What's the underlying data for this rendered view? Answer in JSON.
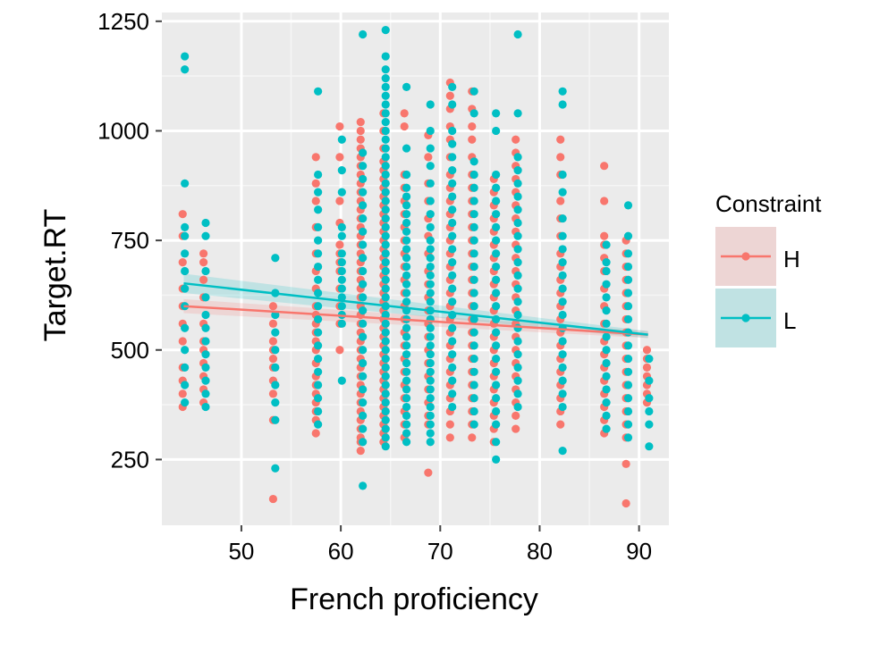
{
  "chart_data": {
    "type": "scatter",
    "title": "",
    "xlabel": "French proficiency",
    "ylabel": "Target.RT",
    "xlim": [
      42,
      93
    ],
    "ylim": [
      100,
      1270
    ],
    "x_ticks": [
      50,
      60,
      70,
      80,
      90
    ],
    "y_ticks": [
      250,
      500,
      750,
      1000,
      1250
    ],
    "grid": true,
    "legend": {
      "title": "Constraint",
      "position": "right",
      "entries": [
        {
          "label": "H",
          "color": "#f8766d"
        },
        {
          "label": "L",
          "color": "#00bfc4"
        }
      ]
    },
    "series": [
      {
        "name": "H",
        "color": "#f8766d",
        "groups": [
          {
            "x": 44.2,
            "y": [
              370,
              400,
              430,
              460,
              520,
              560,
              600,
              640,
              700,
              760,
              810
            ]
          },
          {
            "x": 46.3,
            "y": [
              380,
              410,
              440,
              470,
              500,
              520,
              560,
              620,
              660,
              700,
              720
            ]
          },
          {
            "x": 53.3,
            "y": [
              160,
              340,
              400,
              430,
              460,
              480,
              500,
              520,
              560,
              600
            ]
          },
          {
            "x": 57.6,
            "y": [
              310,
              340,
              360,
              380,
              400,
              420,
              440,
              470,
              500,
              520,
              540,
              560,
              580,
              600,
              640,
              680,
              720,
              780,
              840,
              880,
              940
            ]
          },
          {
            "x": 60.0,
            "y": [
              500,
              560,
              600,
              640,
              680,
              700,
              720,
              740,
              790,
              840,
              940,
              1010
            ]
          },
          {
            "x": 62.1,
            "y": [
              270,
              290,
              300,
              320,
              340,
              360,
              380,
              400,
              420,
              440,
              460,
              480,
              500,
              520,
              540,
              560,
              580,
              600,
              620,
              640,
              660,
              680,
              700,
              720,
              740,
              760,
              780,
              800,
              820,
              840,
              860,
              880,
              900,
              920,
              940,
              960,
              980,
              1000,
              1020
            ]
          },
          {
            "x": 64.4,
            "y": [
              290,
              310,
              330,
              350,
              370,
              390,
              410,
              430,
              450,
              470,
              490,
              510,
              530,
              550,
              570,
              590,
              610,
              630,
              650,
              670,
              690,
              710,
              730,
              750,
              770,
              790,
              810,
              830,
              850,
              870,
              890,
              910,
              930,
              960,
              1000,
              1040
            ]
          },
          {
            "x": 66.5,
            "y": [
              300,
              330,
              360,
              390,
              420,
              450,
              480,
              510,
              540,
              570,
              600,
              630,
              660,
              690,
              720,
              750,
              780,
              810,
              840,
              870,
              900,
              1010,
              1040
            ]
          },
          {
            "x": 68.9,
            "y": [
              220,
              330,
              350,
              380,
              410,
              440,
              470,
              500,
              530,
              560,
              590,
              620,
              650,
              680,
              720,
              760,
              800,
              840,
              880,
              940,
              990
            ]
          },
          {
            "x": 71.1,
            "y": [
              300,
              330,
              360,
              390,
              420,
              450,
              480,
              510,
              540,
              570,
              600,
              630,
              660,
              690,
              720,
              750,
              780,
              810,
              840,
              870,
              900,
              940,
              980,
              1010,
              1050,
              1080,
              1110
            ]
          },
          {
            "x": 73.3,
            "y": [
              300,
              330,
              360,
              390,
              420,
              450,
              480,
              510,
              540,
              570,
              600,
              630,
              660,
              690,
              720,
              750,
              780,
              810,
              840,
              870,
              900,
              940,
              980,
              1010,
              1050,
              1090
            ]
          },
          {
            "x": 75.5,
            "y": [
              290,
              320,
              350,
              380,
              410,
              440,
              470,
              500,
              530,
              560,
              590,
              620,
              650,
              680,
              710,
              740,
              770,
              800,
              830,
              860,
              890
            ]
          },
          {
            "x": 77.7,
            "y": [
              320,
              350,
              380,
              410,
              440,
              470,
              500,
              530,
              560,
              590,
              620,
              650,
              680,
              710,
              740,
              770,
              800,
              830,
              860,
              890,
              920,
              950,
              980
            ]
          },
          {
            "x": 82.2,
            "y": [
              330,
              360,
              390,
              420,
              450,
              480,
              510,
              540,
              570,
              600,
              630,
              660,
              690,
              720,
              760,
              800,
              840,
              900,
              940,
              980
            ]
          },
          {
            "x": 86.6,
            "y": [
              310,
              340,
              370,
              400,
              430,
              460,
              490,
              520,
              560,
              600,
              640,
              680,
              710,
              740,
              760,
              840,
              920
            ]
          },
          {
            "x": 88.8,
            "y": [
              150,
              240,
              300,
              330,
              360,
              390,
              420,
              450,
              480,
              510,
              540,
              570,
              600,
              630,
              660,
              690,
              720,
              750
            ]
          },
          {
            "x": 90.9,
            "y": [
              380,
              400,
              420,
              440,
              460,
              480,
              500
            ]
          }
        ],
        "trend": {
          "x": [
            44.2,
            90.9
          ],
          "y": [
            600,
            535
          ]
        }
      },
      {
        "name": "L",
        "color": "#00bfc4",
        "groups": [
          {
            "x": 44.2,
            "y": [
              380,
              420,
              460,
              500,
              550,
              600,
              640,
              680,
              720,
              760,
              780,
              880,
              1140,
              1170
            ]
          },
          {
            "x": 46.3,
            "y": [
              370,
              400,
              430,
              460,
              490,
              520,
              550,
              580,
              620,
              680,
              760,
              790
            ]
          },
          {
            "x": 53.3,
            "y": [
              230,
              340,
              380,
              420,
              460,
              500,
              540,
              580,
              630,
              710
            ]
          },
          {
            "x": 57.6,
            "y": [
              330,
              360,
              390,
              420,
              450,
              480,
              510,
              540,
              570,
              600,
              630,
              660,
              690,
              720,
              750,
              780,
              820,
              860,
              900,
              1090
            ]
          },
          {
            "x": 60.0,
            "y": [
              430,
              560,
              580,
              600,
              620,
              640,
              660,
              680,
              700,
              720,
              760,
              780,
              860,
              910,
              980
            ]
          },
          {
            "x": 62.1,
            "y": [
              190,
              290,
              320,
              350,
              380,
              410,
              440,
              470,
              500,
              530,
              560,
              590,
              620,
              650,
              680,
              710,
              740,
              770,
              800,
              830,
              860,
              890,
              920,
              950,
              1220
            ]
          },
          {
            "x": 64.4,
            "y": [
              280,
              300,
              320,
              340,
              360,
              380,
              400,
              420,
              440,
              460,
              480,
              500,
              520,
              540,
              560,
              580,
              600,
              620,
              640,
              660,
              680,
              700,
              720,
              740,
              760,
              780,
              800,
              820,
              840,
              860,
              880,
              900,
              920,
              940,
              960,
              980,
              1000,
              1020,
              1040,
              1060,
              1080,
              1100,
              1120,
              1140,
              1170,
              1230
            ]
          },
          {
            "x": 66.5,
            "y": [
              290,
              310,
              330,
              350,
              370,
              390,
              410,
              430,
              450,
              470,
              490,
              510,
              530,
              550,
              570,
              590,
              610,
              630,
              650,
              670,
              690,
              710,
              730,
              750,
              770,
              790,
              810,
              830,
              850,
              870,
              900,
              960,
              1100
            ]
          },
          {
            "x": 68.9,
            "y": [
              290,
              310,
              330,
              350,
              370,
              390,
              410,
              430,
              450,
              470,
              490,
              510,
              530,
              550,
              570,
              590,
              610,
              630,
              650,
              670,
              690,
              710,
              730,
              750,
              780,
              810,
              840,
              880,
              920,
              960,
              1000,
              1060
            ]
          },
          {
            "x": 71.1,
            "y": [
              370,
              400,
              430,
              460,
              490,
              520,
              550,
              580,
              610,
              640,
              670,
              700,
              730,
              760,
              790,
              820,
              850,
              880,
              910,
              940,
              970,
              1000,
              1060,
              1100
            ]
          },
          {
            "x": 73.3,
            "y": [
              330,
              360,
              390,
              420,
              450,
              480,
              510,
              540,
              570,
              600,
              630,
              660,
              690,
              720,
              750,
              780,
              810,
              840,
              870,
              900,
              930,
              1040,
              1090
            ]
          },
          {
            "x": 75.5,
            "y": [
              250,
              290,
              330,
              360,
              390,
              420,
              450,
              480,
              510,
              540,
              570,
              600,
              630,
              660,
              690,
              720,
              750,
              780,
              810,
              840,
              870,
              900,
              1000,
              1040
            ]
          },
          {
            "x": 77.7,
            "y": [
              370,
              400,
              430,
              460,
              490,
              520,
              550,
              580,
              610,
              640,
              670,
              700,
              730,
              760,
              790,
              820,
              850,
              880,
              910,
              940,
              1040,
              1220
            ]
          },
          {
            "x": 82.2,
            "y": [
              270,
              370,
              400,
              430,
              460,
              490,
              520,
              550,
              580,
              610,
              640,
              670,
              700,
              730,
              760,
              800,
              860,
              900,
              1060,
              1090
            ]
          },
          {
            "x": 86.6,
            "y": [
              320,
              350,
              380,
              410,
              440,
              470,
              500,
              530,
              560,
              590,
              620,
              650,
              680,
              700,
              740
            ]
          },
          {
            "x": 88.8,
            "y": [
              300,
              330,
              360,
              390,
              420,
              450,
              480,
              510,
              540,
              570,
              600,
              630,
              660,
              690,
              720,
              760,
              830
            ]
          },
          {
            "x": 90.9,
            "y": [
              280,
              330,
              360,
              390,
              430,
              480
            ]
          }
        ],
        "trend": {
          "x": [
            44.2,
            90.9
          ],
          "y": [
            652,
            535
          ]
        }
      }
    ]
  }
}
